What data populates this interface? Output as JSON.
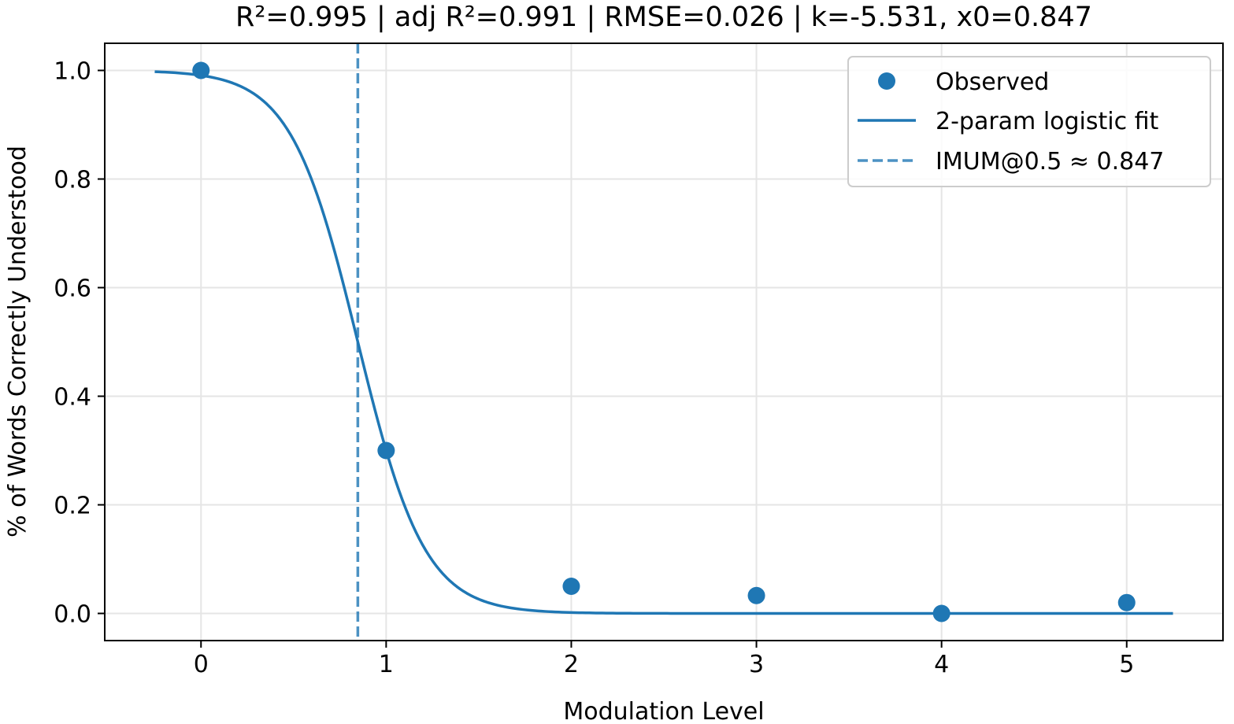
{
  "chart_data": {
    "type": "scatter",
    "title": "R²=0.995 | adj R²=0.991 | RMSE=0.026 | k=-5.531, x0=0.847",
    "xlabel": "Modulation Level",
    "ylabel": "% of Words Correctly Understood",
    "xlim": [
      -0.52,
      5.52
    ],
    "ylim": [
      -0.05,
      1.05
    ],
    "xticks": [
      "0",
      "1",
      "2",
      "3",
      "4",
      "5"
    ],
    "yticks": [
      "0.0",
      "0.2",
      "0.4",
      "0.6",
      "0.8",
      "1.0"
    ],
    "grid": true,
    "legend_position": "top-right",
    "colors": {
      "series": "#1f77b4",
      "grid": "#e5e5e5",
      "axis": "#000000"
    },
    "observed": {
      "name": "Observed",
      "x": [
        0,
        1,
        2,
        3,
        4,
        5
      ],
      "y": [
        1.0,
        0.3,
        0.05,
        0.033,
        0.0,
        0.02
      ]
    },
    "fit": {
      "name": "2-param logistic fit",
      "model": "logistic",
      "k": -5.531,
      "x0": 0.847,
      "x_range": [
        -0.25,
        5.25
      ]
    },
    "reference_line": {
      "name": "IMUM@0.5 ≈ 0.847",
      "x": 0.847
    }
  }
}
